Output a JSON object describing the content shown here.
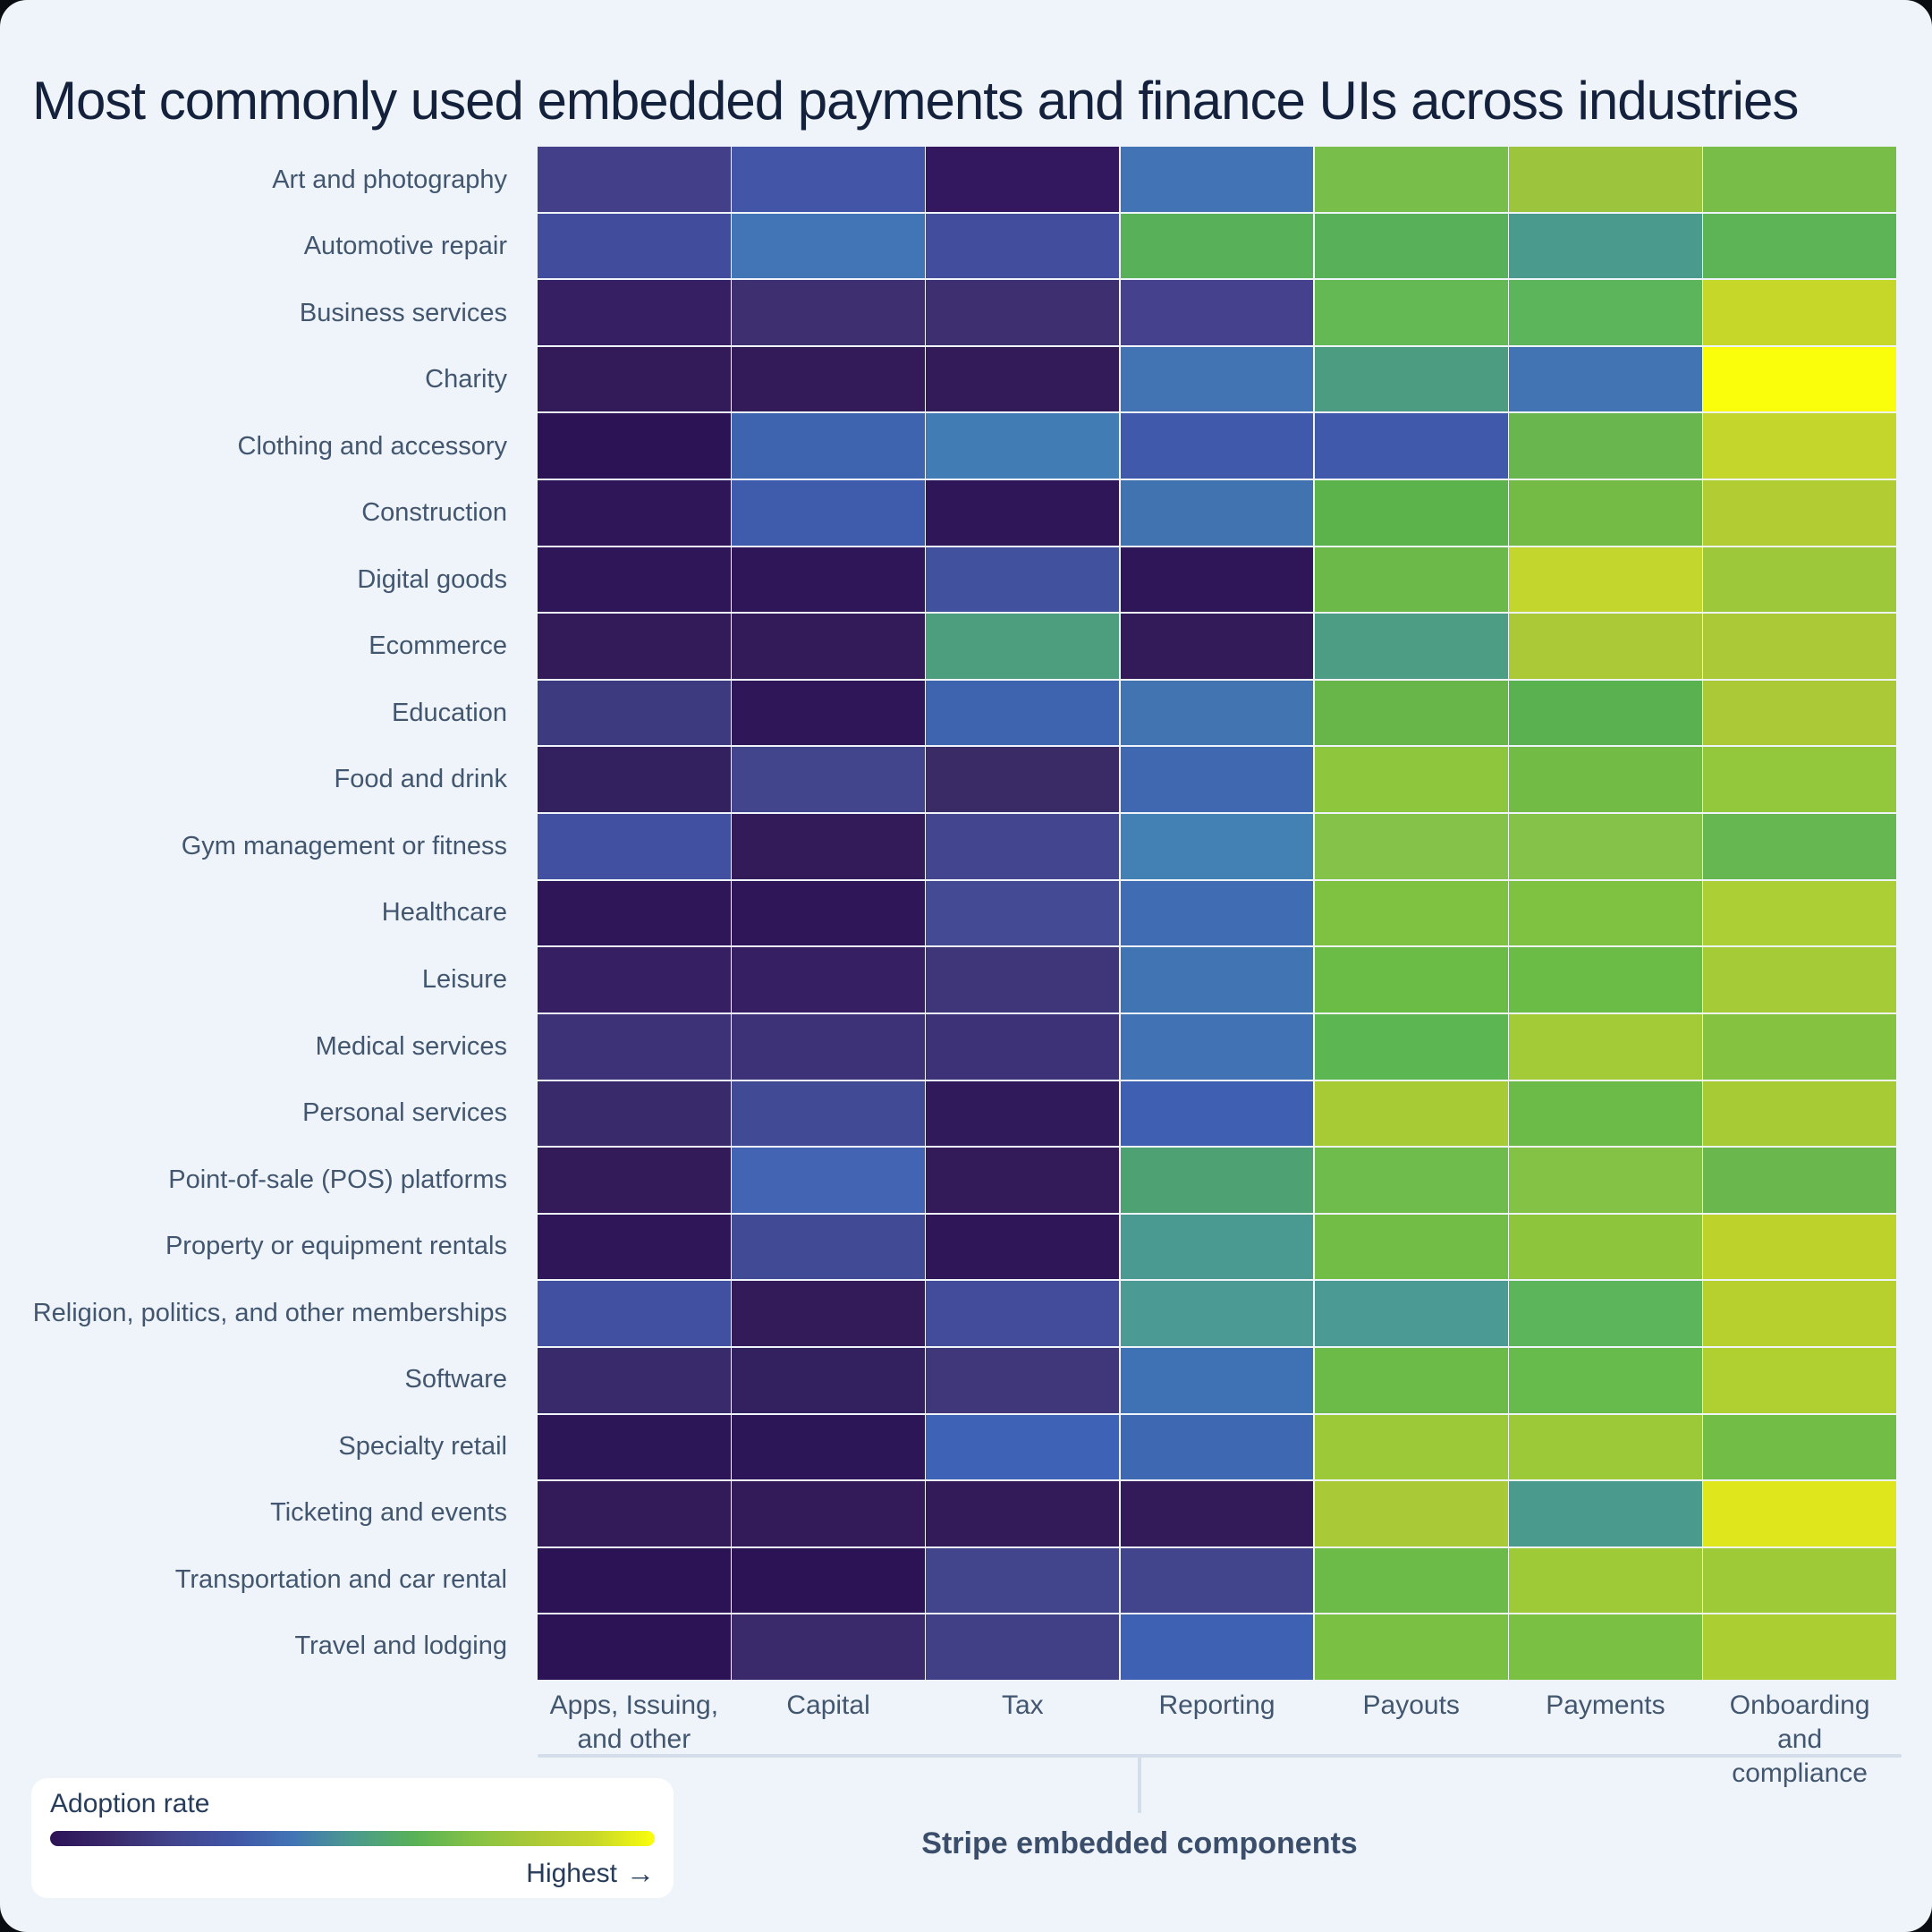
{
  "chart_data": {
    "type": "heatmap",
    "title": "Most commonly used embedded payments and finance UIs across industries",
    "x_group_label": "Stripe embedded components",
    "columns": [
      "Apps, Issuing, and other",
      "Capital",
      "Tax",
      "Reporting",
      "Payouts",
      "Payments",
      "Onboarding and compliance"
    ],
    "rows": [
      "Art and photography",
      "Automotive repair",
      "Business services",
      "Charity",
      "Clothing and accessory",
      "Construction",
      "Digital goods",
      "Ecommerce",
      "Education",
      "Food and drink",
      "Gym management or fitness",
      "Healthcare",
      "Leisure",
      "Medical services",
      "Personal services",
      "Point-of-sale (POS) platforms",
      "Property or equipment rentals",
      "Religion, politics, and other memberships",
      "Software",
      "Specialty retail",
      "Ticketing and events",
      "Transportation and car rental",
      "Travel and lodging"
    ],
    "values": [
      [
        0.2,
        0.3,
        0.02,
        0.4,
        0.67,
        0.77,
        0.67
      ],
      [
        0.26,
        0.4,
        0.26,
        0.6,
        0.6,
        0.5,
        0.61
      ],
      [
        0.07,
        0.12,
        0.12,
        0.2,
        0.63,
        0.61,
        0.9
      ],
      [
        0.03,
        0.03,
        0.03,
        0.39,
        0.52,
        0.39,
        1.0
      ],
      [
        0.0,
        0.34,
        0.42,
        0.31,
        0.31,
        0.63,
        0.89
      ],
      [
        0.01,
        0.32,
        0.01,
        0.39,
        0.61,
        0.66,
        0.82
      ],
      [
        0.01,
        0.01,
        0.28,
        0.01,
        0.64,
        0.89,
        0.77
      ],
      [
        0.03,
        0.03,
        0.53,
        0.03,
        0.52,
        0.8,
        0.8
      ],
      [
        0.16,
        0.01,
        0.34,
        0.4,
        0.63,
        0.6,
        0.8
      ],
      [
        0.05,
        0.2,
        0.1,
        0.36,
        0.73,
        0.66,
        0.74
      ],
      [
        0.28,
        0.03,
        0.21,
        0.43,
        0.7,
        0.7,
        0.63
      ],
      [
        0.01,
        0.01,
        0.23,
        0.37,
        0.69,
        0.69,
        0.8
      ],
      [
        0.07,
        0.07,
        0.13,
        0.4,
        0.64,
        0.64,
        0.79
      ],
      [
        0.13,
        0.13,
        0.13,
        0.39,
        0.61,
        0.78,
        0.7
      ],
      [
        0.1,
        0.24,
        0.02,
        0.33,
        0.79,
        0.64,
        0.79
      ],
      [
        0.03,
        0.35,
        0.03,
        0.55,
        0.65,
        0.7,
        0.63
      ],
      [
        0.01,
        0.24,
        0.01,
        0.5,
        0.66,
        0.72,
        0.86
      ],
      [
        0.28,
        0.03,
        0.25,
        0.49,
        0.49,
        0.61,
        0.84
      ],
      [
        0.1,
        0.05,
        0.14,
        0.39,
        0.64,
        0.63,
        0.82
      ],
      [
        0.01,
        0.01,
        0.35,
        0.36,
        0.76,
        0.76,
        0.66
      ],
      [
        0.03,
        0.03,
        0.03,
        0.03,
        0.79,
        0.5,
        0.95
      ],
      [
        0.0,
        0.0,
        0.2,
        0.2,
        0.64,
        0.77,
        0.77
      ],
      [
        0.0,
        0.1,
        0.18,
        0.34,
        0.67,
        0.67,
        0.8
      ]
    ],
    "cell_colors": [
      [
        "#434089",
        "#4255a6",
        "#33175f",
        "#4274b5",
        "#78be4b",
        "#9cc43d",
        "#79bd49"
      ],
      [
        "#414c9d",
        "#4275b5",
        "#424d9e",
        "#58b158",
        "#58b158",
        "#4b9a8e",
        "#5cb456"
      ],
      [
        "#362063",
        "#3d2f70",
        "#3d2f70",
        "#45418d",
        "#65b954",
        "#5cb45b",
        "#c6d72a"
      ],
      [
        "#331a58",
        "#331a58",
        "#331a58",
        "#4273b2",
        "#4b9c80",
        "#4273b2",
        "#fbfe0a"
      ],
      [
        "#2c1356",
        "#3e64af",
        "#427cb4",
        "#4159aa",
        "#4159aa",
        "#68b64d",
        "#c4d62c"
      ],
      [
        "#2e1658",
        "#3f5bac",
        "#2e1658",
        "#4173b0",
        "#5cb34c",
        "#74bb45",
        "#b2cc33"
      ],
      [
        "#2e1658",
        "#2e1658",
        "#42519e",
        "#2e1658",
        "#6cb848",
        "#c3d62e",
        "#9dc839"
      ],
      [
        "#331a58",
        "#331a58",
        "#4d9e7e",
        "#331a58",
        "#4d9d84",
        "#abc937",
        "#abc937"
      ],
      [
        "#3e3a80",
        "#2e1658",
        "#3e64b0",
        "#4274b2",
        "#68b64a",
        "#5ab150",
        "#abc936"
      ],
      [
        "#33205e",
        "#42458c",
        "#3a2a66",
        "#3f68b0",
        "#8ec63d",
        "#72bc45",
        "#93c73c"
      ],
      [
        "#4150a0",
        "#331a58",
        "#44458f",
        "#4380b4",
        "#84c24a",
        "#84c24a",
        "#66b751"
      ],
      [
        "#2e1658",
        "#2e1658",
        "#444a94",
        "#3f6cb2",
        "#7fc241",
        "#7fc241",
        "#abcf35"
      ],
      [
        "#371f63",
        "#371f63",
        "#3f3579",
        "#4174b2",
        "#6bbb47",
        "#6bbb47",
        "#a5cb36"
      ],
      [
        "#3d3278",
        "#3d3278",
        "#3d3278",
        "#4172b4",
        "#5cb651",
        "#a3ca37",
        "#84c23f"
      ],
      [
        "#392a6b",
        "#414a95",
        "#301a5c",
        "#3e5fb2",
        "#a6cb35",
        "#6cbb48",
        "#a6cb35"
      ],
      [
        "#331a58",
        "#4264b2",
        "#331a58",
        "#4da173",
        "#6fbc4c",
        "#84c245",
        "#6ab74e"
      ],
      [
        "#2e1658",
        "#414a95",
        "#2e1658",
        "#4a9a91",
        "#72bd45",
        "#8dc63c",
        "#bdd32c"
      ],
      [
        "#4150a0",
        "#331a58",
        "#434c9b",
        "#4b9a93",
        "#4b9a93",
        "#5cb45b",
        "#b8d02e"
      ],
      [
        "#392a6b",
        "#32205f",
        "#3f3779",
        "#3e72b5",
        "#6cbb48",
        "#66bb4c",
        "#b0cf31"
      ],
      [
        "#2c1658",
        "#2c1658",
        "#3e63b6",
        "#3e68b2",
        "#9bc938",
        "#9bc938",
        "#72bd45"
      ],
      [
        "#331a58",
        "#331a58",
        "#331a58",
        "#331a58",
        "#a9c937",
        "#4b9a8e",
        "#dfe71c"
      ],
      [
        "#2c1356",
        "#2c1356",
        "#42448c",
        "#42448c",
        "#6cbb48",
        "#9fca37",
        "#9fca37"
      ],
      [
        "#2c1356",
        "#3a2a6b",
        "#413f85",
        "#3e61b3",
        "#79c043",
        "#79c043",
        "#abce33"
      ]
    ],
    "legend": {
      "label": "Adoption rate",
      "max_label": "Highest",
      "arrow": "→",
      "gradient": [
        "#2c1356",
        "#3a2a6b",
        "#42448c",
        "#4155a5",
        "#4274b5",
        "#4b9a8e",
        "#58b158",
        "#84c245",
        "#abc937",
        "#c6d72a",
        "#fbfe0a"
      ]
    },
    "layout": {
      "background": "#eff4fa",
      "title_color": "#14213c",
      "label_color": "#42566f",
      "bracket_color": "#d3deea",
      "legend_bg": "#ffffff"
    }
  }
}
